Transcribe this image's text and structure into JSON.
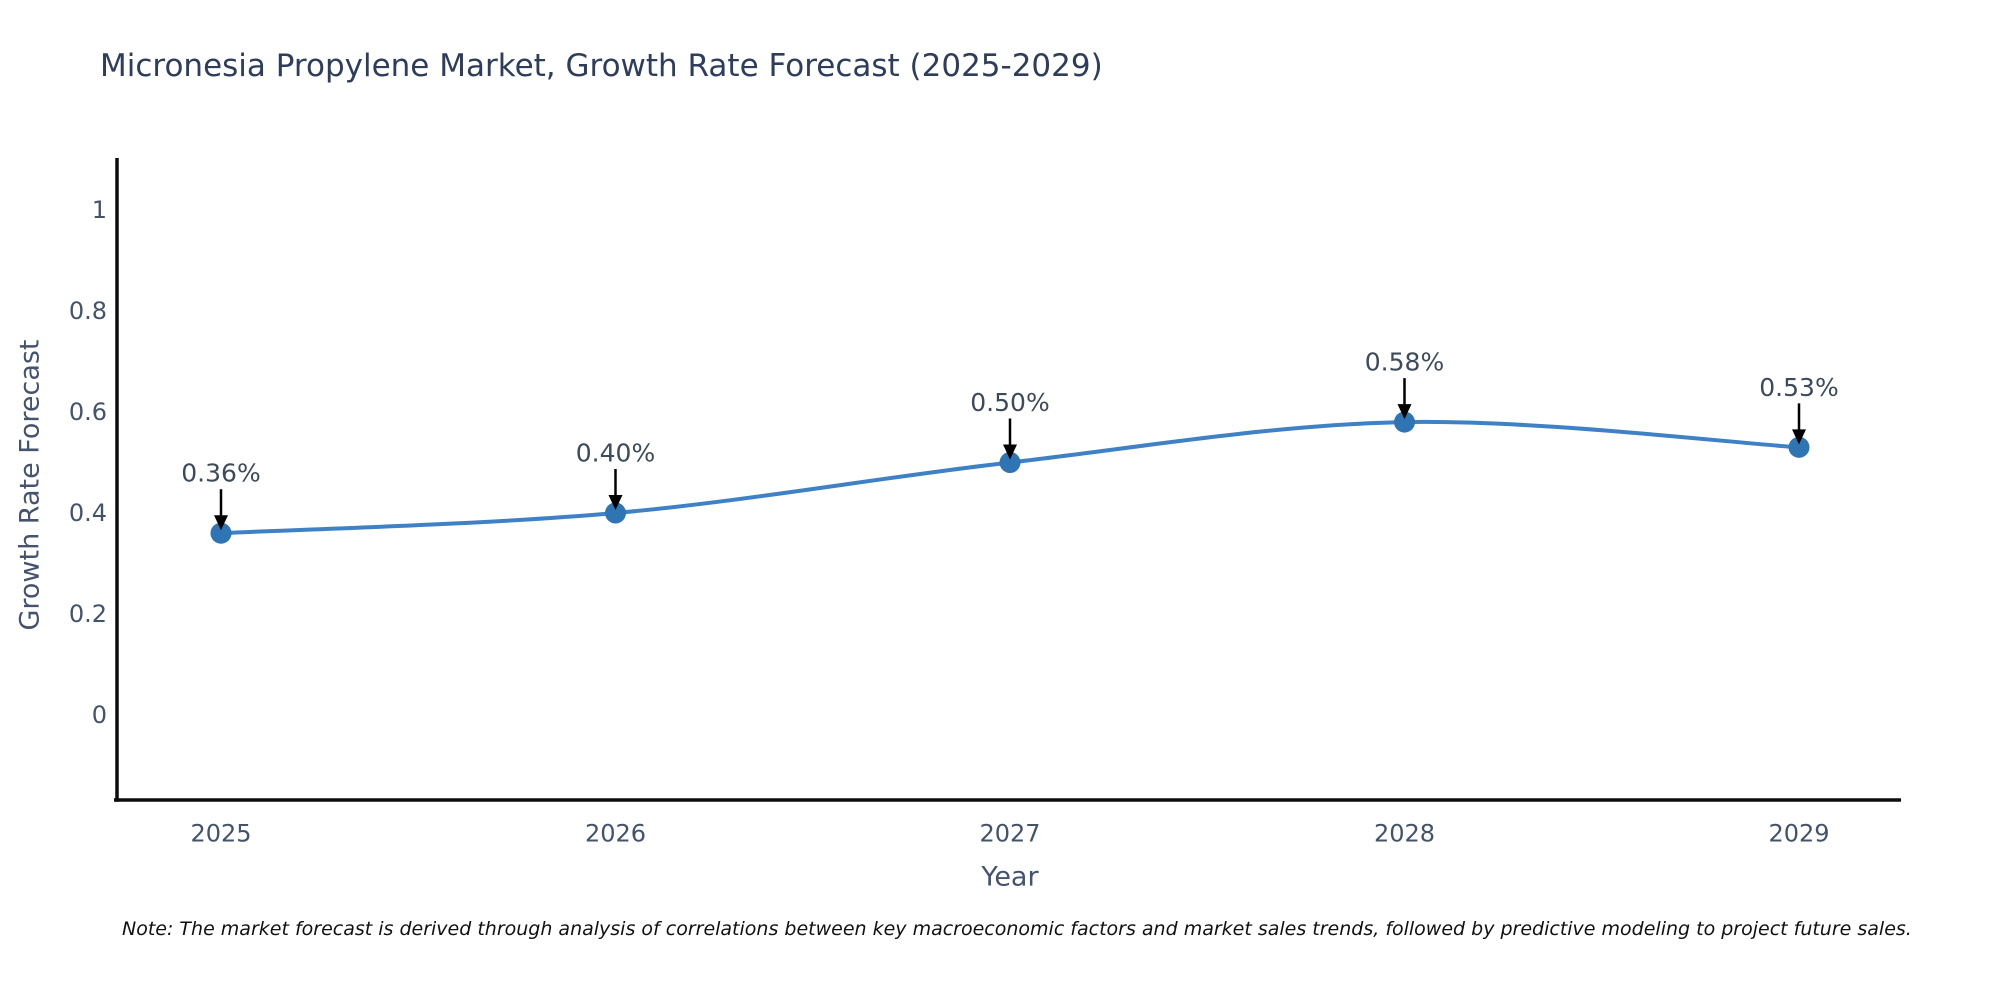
{
  "title": "Micronesia Propylene Market, Growth Rate Forecast (2025-2029)",
  "note": "Note: The market forecast is derived through analysis of correlations between key macroeconomic factors and market sales trends, followed by predictive modeling to project future sales.",
  "chart_data": {
    "type": "line",
    "title": "Micronesia Propylene Market, Growth Rate Forecast (2025-2029)",
    "x": [
      2025,
      2026,
      2027,
      2028,
      2029
    ],
    "xtick_labels": [
      "2025",
      "2026",
      "2027",
      "2028",
      "2029"
    ],
    "series": [
      {
        "name": "Growth Rate Forecast",
        "values": [
          0.36,
          0.4,
          0.5,
          0.58,
          0.53
        ]
      }
    ],
    "point_labels": [
      "0.36%",
      "0.40%",
      "0.50%",
      "0.58%",
      "0.53%"
    ],
    "xlabel": "Year",
    "ylabel": "Growth Rate Forecast",
    "yticks": [
      0,
      0.2,
      0.4,
      0.6,
      0.8,
      1
    ],
    "ytick_labels": [
      "0",
      "0.2",
      "0.4",
      "0.6",
      "0.8",
      "1"
    ],
    "ylim": [
      -0.17,
      1.1
    ],
    "grid": false,
    "legend_position": "none",
    "line_shape": "spline",
    "annotation_arrows": true
  },
  "colors": {
    "line": "#3e81c4",
    "marker": "#2f74b3",
    "arrow": "#000000",
    "spine": "#0d0d0d",
    "tick_label": "#42536b",
    "axis_title": "#45536e",
    "data_label": "#3d4a5a",
    "title": "#2e3d5c",
    "background": "#ffffff"
  }
}
